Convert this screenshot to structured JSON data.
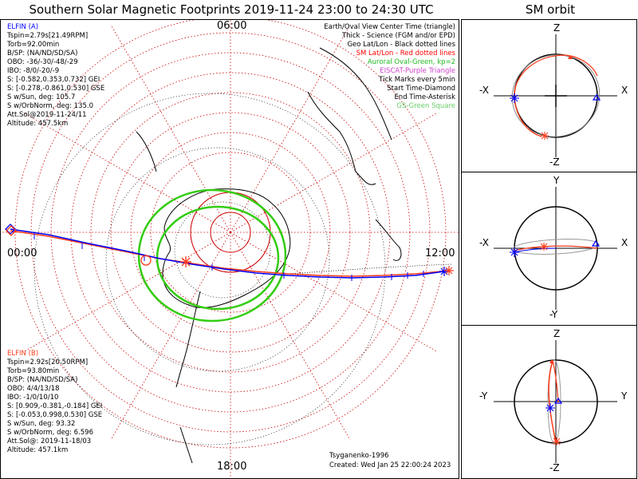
{
  "header": {
    "title": "Southern Solar Magnetic Footprints 2019-11-24 23:00 to 24:30 UTC",
    "sm_title": "SM orbit"
  },
  "colors": {
    "probe_a": "#0000ff",
    "probe_b": "#ff3a1a",
    "auroral_oval": "#33cc11",
    "sm_grid": "#cc0000",
    "geo_grid": "#000000",
    "eiscat": "#cc44cc",
    "green_square": "#66cc66"
  },
  "main": {
    "hours": {
      "top": "06:00",
      "left": "00:00",
      "right": "12:00",
      "bottom": "18:00"
    },
    "elfin_a": {
      "name": "ELFIN (A)",
      "lines": [
        "Tspin=2.79s[21.49RPM]",
        "Torb=92.00min",
        "B/SP: (NA/ND/SD/SA)",
        "OBO: -36/-30/-48/-29",
        "IBO: -8/0/-20/-9",
        "S: [-0.582,0.353,0.732] GEI",
        "S: [-0.278,-0.861,0.530] GSE",
        "S w/Sun, deg: 105.7",
        "S w/OrbNorm, deg: 135.0",
        "Att.Sol@2019-11-24/11",
        "Altitude: 457.5km"
      ]
    },
    "elfin_b": {
      "name": "ELFIN (B)",
      "lines": [
        "Tspin=2.92s[20.50RPM]",
        "Torb=93.80min",
        "B/SP: (NA/ND/SD/SA)",
        "OBO: 4/4/13/18",
        "IBO: -1/0/10/10",
        "S: [0.909,-0.381,-0.184] GEI",
        "S: [-0.053,0.998,0.530] GSE",
        "S w/Sun, deg: 93.32",
        "S w/OrbNorm, deg: 6.596",
        "Att.Sol@: 2019-11-18/03",
        "Altitude: 457.1km"
      ]
    },
    "legend": [
      {
        "text": "Earth/Oval View Center Time (triangle)",
        "color": "#000000"
      },
      {
        "text": "Thick - Science (FGM and/or EPD)",
        "color": "#000000"
      },
      {
        "text": "Geo Lat/Lon - Black dotted lines",
        "color": "#000000"
      },
      {
        "text": "SM Lat/Lon - Red dotted lines",
        "color": "#ff0000"
      },
      {
        "text": "Auroral Oval-Green, kp=2",
        "color": "#22bb22"
      },
      {
        "text": "EISCAT-Purple Triangle",
        "color": "#cc44cc"
      },
      {
        "text": "Tick Marks every 5min",
        "color": "#000000"
      },
      {
        "text": "Start Time-Diamond",
        "color": "#000000"
      },
      {
        "text": "End Time-Asterisk",
        "color": "#000000"
      },
      {
        "text": "GS-Green Square",
        "color": "#66cc66"
      }
    ],
    "credits": {
      "author": "Tsyganenko-1996",
      "created": "Created: Wed Jan 25 22:00:24 2023"
    }
  },
  "sm_orbit": {
    "xz": {
      "top": "Z",
      "bottom": "-Z",
      "left": "-X",
      "right": "X"
    },
    "xy": {
      "top": "Y",
      "bottom": "-Y",
      "left": "-X",
      "right": "X"
    },
    "yz": {
      "top": "Z",
      "bottom": "-Z",
      "left": "-Y",
      "right": "Y"
    }
  }
}
